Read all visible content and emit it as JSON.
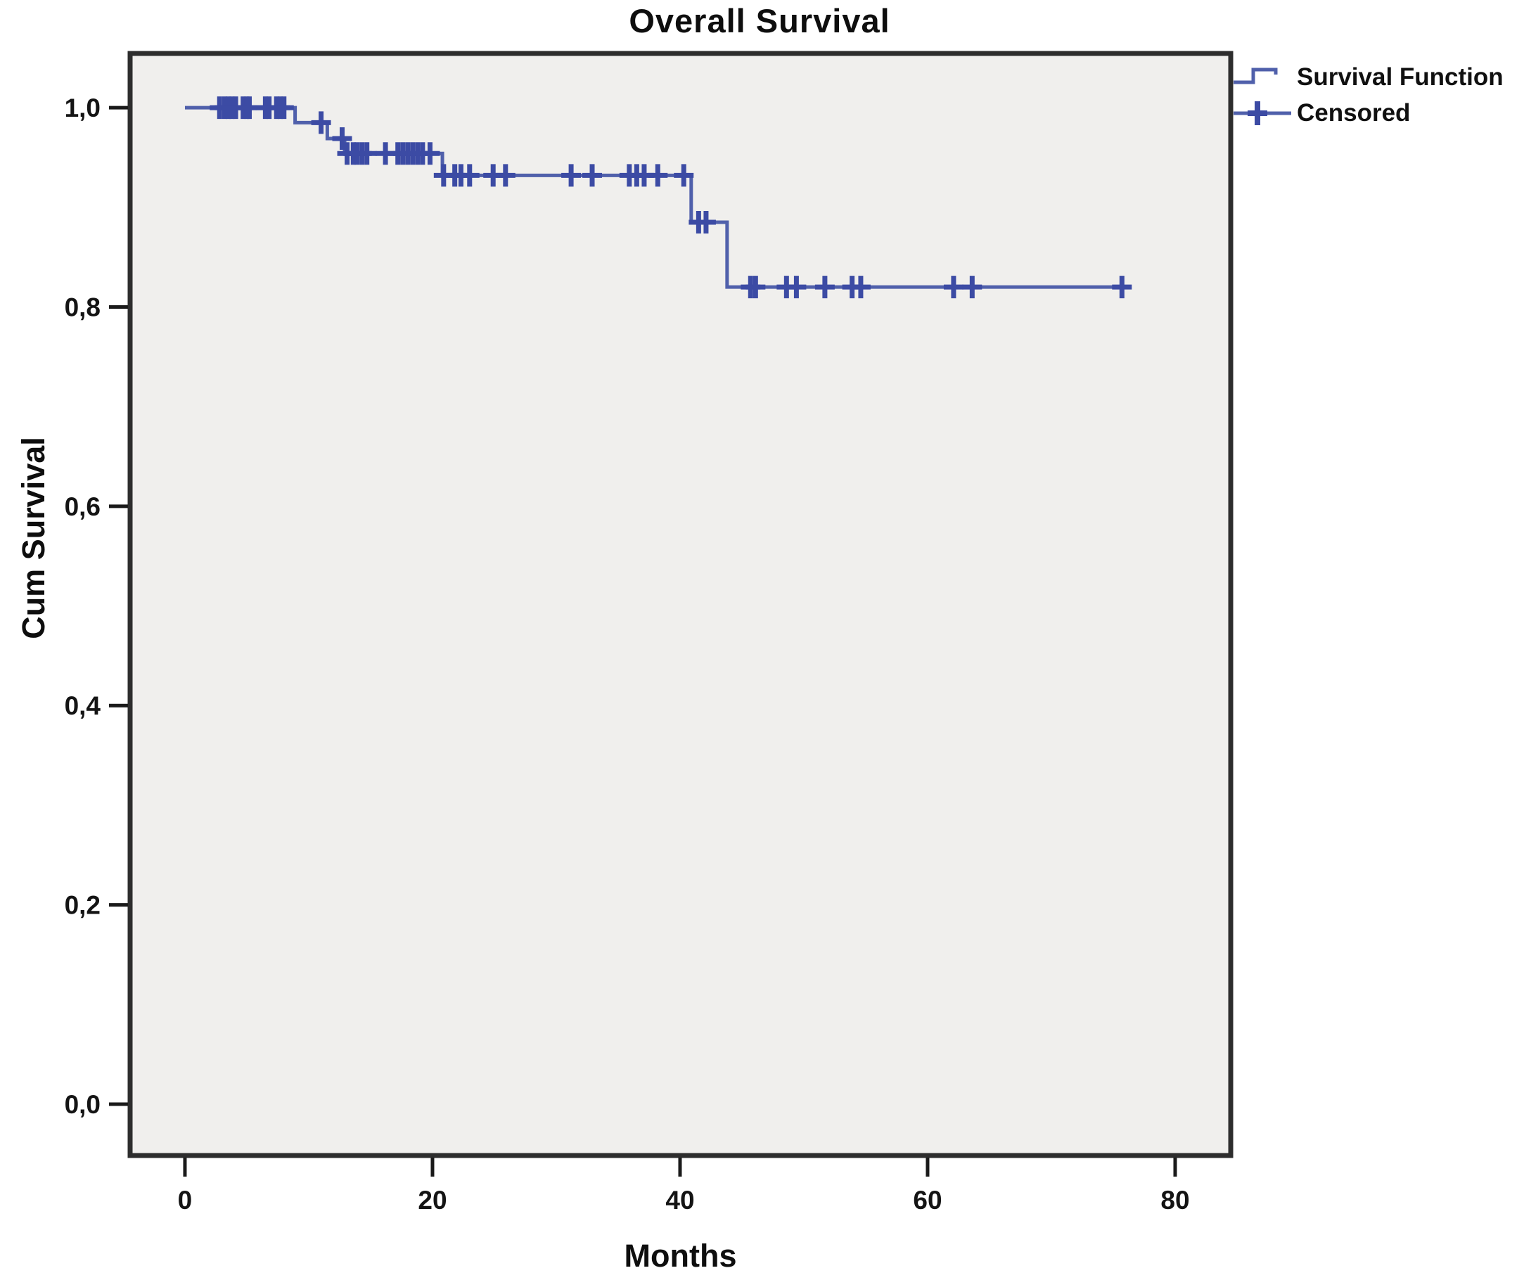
{
  "chart_data": {
    "type": "line",
    "subtype": "kaplan-meier-step",
    "title": "Overall Survival",
    "xlabel": "Months",
    "ylabel": "Cum Survival",
    "legend": [
      "Survival Function",
      "Censored"
    ],
    "legend_position": "top-right-outside",
    "grid": false,
    "axes": {
      "x": {
        "min": -4.43,
        "max": 84.49,
        "ticks": [
          0,
          20,
          40,
          60,
          80
        ],
        "tick_labels": [
          "0",
          "20",
          "40",
          "60",
          "80"
        ]
      },
      "y": {
        "min": -0.0515,
        "max": 1.0544,
        "ticks": [
          0.0,
          0.2,
          0.4,
          0.6,
          0.8,
          1.0
        ],
        "tick_labels": [
          "0,0",
          "0,2",
          "0,4",
          "0,6",
          "0,8",
          "1,0"
        ]
      }
    },
    "series": [
      {
        "name": "Survival Function",
        "steps": [
          {
            "t": 0.0,
            "s": 1.0
          },
          {
            "t": 8.9,
            "s": 0.985
          },
          {
            "t": 11.5,
            "s": 0.969
          },
          {
            "t": 12.9,
            "s": 0.954
          },
          {
            "t": 20.8,
            "s": 0.932
          },
          {
            "t": 40.9,
            "s": 0.885
          },
          {
            "t": 43.8,
            "s": 0.82
          }
        ],
        "end_t": 76.4
      }
    ],
    "censored": [
      {
        "t": 2.8,
        "s": 1.0
      },
      {
        "t": 3.2,
        "s": 1.0
      },
      {
        "t": 3.5,
        "s": 1.0
      },
      {
        "t": 3.8,
        "s": 1.0
      },
      {
        "t": 4.1,
        "s": 1.0
      },
      {
        "t": 4.7,
        "s": 1.0
      },
      {
        "t": 5.0,
        "s": 1.0
      },
      {
        "t": 5.2,
        "s": 1.0
      },
      {
        "t": 6.5,
        "s": 1.0
      },
      {
        "t": 6.8,
        "s": 1.0
      },
      {
        "t": 7.4,
        "s": 1.0
      },
      {
        "t": 7.7,
        "s": 1.0
      },
      {
        "t": 8.0,
        "s": 1.0
      },
      {
        "t": 11.0,
        "s": 0.985
      },
      {
        "t": 12.7,
        "s": 0.969
      },
      {
        "t": 13.1,
        "s": 0.954
      },
      {
        "t": 13.6,
        "s": 0.954
      },
      {
        "t": 13.9,
        "s": 0.954
      },
      {
        "t": 14.3,
        "s": 0.954
      },
      {
        "t": 14.7,
        "s": 0.954
      },
      {
        "t": 16.2,
        "s": 0.954
      },
      {
        "t": 17.2,
        "s": 0.954
      },
      {
        "t": 17.6,
        "s": 0.954
      },
      {
        "t": 18.0,
        "s": 0.954
      },
      {
        "t": 18.4,
        "s": 0.954
      },
      {
        "t": 18.8,
        "s": 0.954
      },
      {
        "t": 19.2,
        "s": 0.954
      },
      {
        "t": 19.8,
        "s": 0.954
      },
      {
        "t": 20.9,
        "s": 0.932
      },
      {
        "t": 21.8,
        "s": 0.932
      },
      {
        "t": 22.3,
        "s": 0.932
      },
      {
        "t": 23.0,
        "s": 0.932
      },
      {
        "t": 24.9,
        "s": 0.932
      },
      {
        "t": 25.9,
        "s": 0.932
      },
      {
        "t": 31.2,
        "s": 0.932
      },
      {
        "t": 32.9,
        "s": 0.932
      },
      {
        "t": 35.9,
        "s": 0.932
      },
      {
        "t": 36.5,
        "s": 0.932
      },
      {
        "t": 37.1,
        "s": 0.932
      },
      {
        "t": 38.2,
        "s": 0.932
      },
      {
        "t": 40.3,
        "s": 0.932
      },
      {
        "t": 41.5,
        "s": 0.885
      },
      {
        "t": 42.1,
        "s": 0.885
      },
      {
        "t": 45.7,
        "s": 0.82
      },
      {
        "t": 46.1,
        "s": 0.82
      },
      {
        "t": 48.6,
        "s": 0.82
      },
      {
        "t": 49.4,
        "s": 0.82
      },
      {
        "t": 51.7,
        "s": 0.82
      },
      {
        "t": 53.9,
        "s": 0.82
      },
      {
        "t": 54.6,
        "s": 0.82
      },
      {
        "t": 62.1,
        "s": 0.82
      },
      {
        "t": 63.6,
        "s": 0.82
      },
      {
        "t": 75.7,
        "s": 0.82
      }
    ],
    "colors": {
      "line": "#5060ab",
      "censor_mark": "#3c4ba4",
      "plot_background": "#f0efed",
      "frame": "#2d2d2d",
      "text": "#0e0e0e"
    }
  }
}
